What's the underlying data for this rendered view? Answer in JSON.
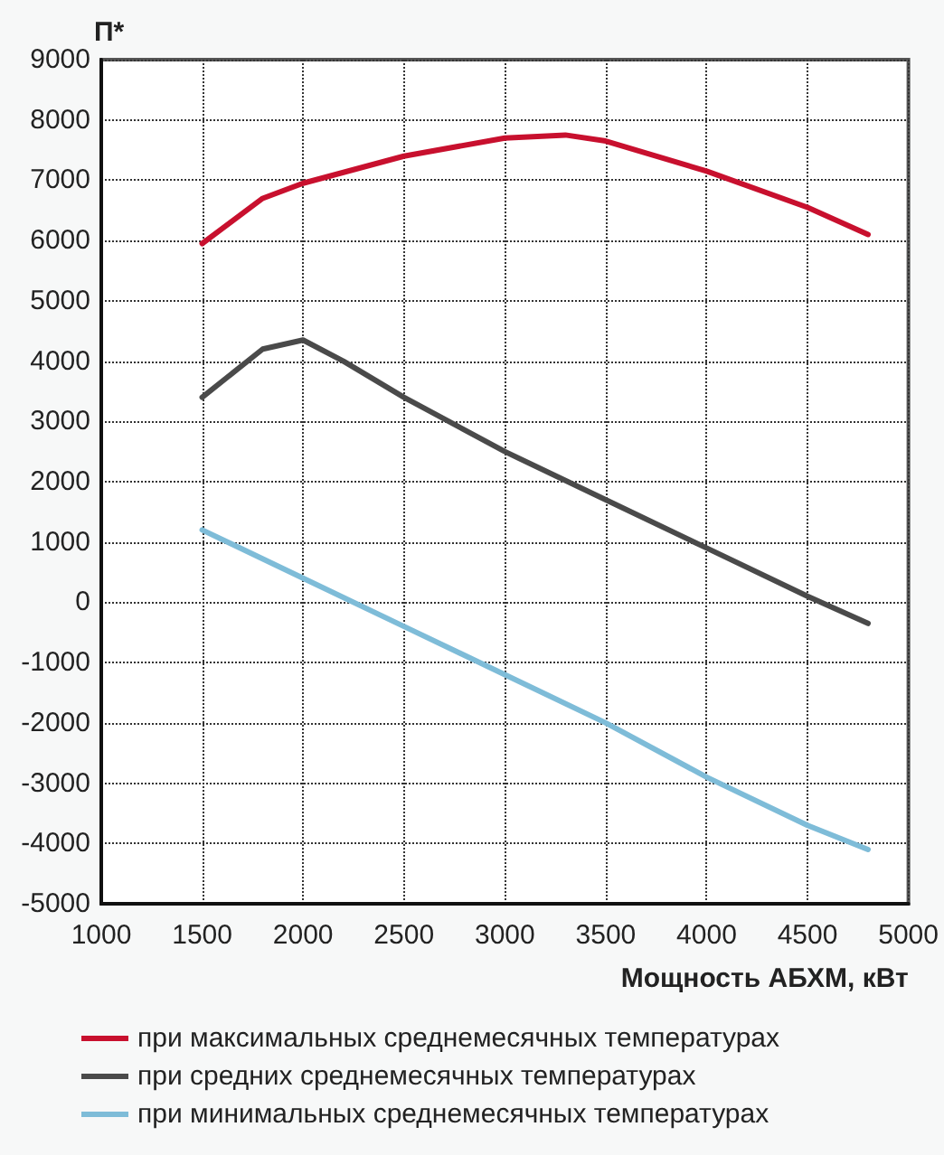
{
  "chart_data": {
    "type": "line",
    "ylabel": "П*",
    "xlabel": "Мощность АБХМ, кВт",
    "xlim": [
      1000,
      5000
    ],
    "xticks": [
      1000,
      1500,
      2000,
      2500,
      3000,
      3500,
      4000,
      4500,
      5000
    ],
    "ylim": [
      -5000,
      9000
    ],
    "yticks": [
      -5000,
      -4000,
      -3000,
      -2000,
      -1000,
      0,
      1000,
      2000,
      3000,
      4000,
      5000,
      6000,
      7000,
      8000,
      9000
    ],
    "grid": true,
    "legend": "bottom",
    "marker": "none",
    "line_style": "solid",
    "series": [
      {
        "name": "при максимальных среднемесячных температурах",
        "color": "#c8102e",
        "x": [
          1500,
          1800,
          2000,
          2500,
          3000,
          3300,
          3500,
          4000,
          4500,
          4800
        ],
        "values": [
          5950,
          6700,
          6950,
          7400,
          7700,
          7750,
          7650,
          7150,
          6550,
          6100
        ]
      },
      {
        "name": "при средних среднемесячных температурах",
        "color": "#4a4a4a",
        "x": [
          1500,
          1800,
          2000,
          2200,
          2500,
          3000,
          3500,
          4000,
          4500,
          4800
        ],
        "values": [
          3400,
          4200,
          4350,
          4000,
          3400,
          2500,
          1700,
          900,
          100,
          -350
        ]
      },
      {
        "name": "при минимальных среднемесячных температурах",
        "color": "#7ebcd8",
        "x": [
          1500,
          2000,
          2500,
          3000,
          3500,
          4000,
          4500,
          4800
        ],
        "values": [
          1200,
          400,
          -400,
          -1200,
          -2000,
          -2900,
          -3700,
          -4100
        ]
      }
    ]
  }
}
